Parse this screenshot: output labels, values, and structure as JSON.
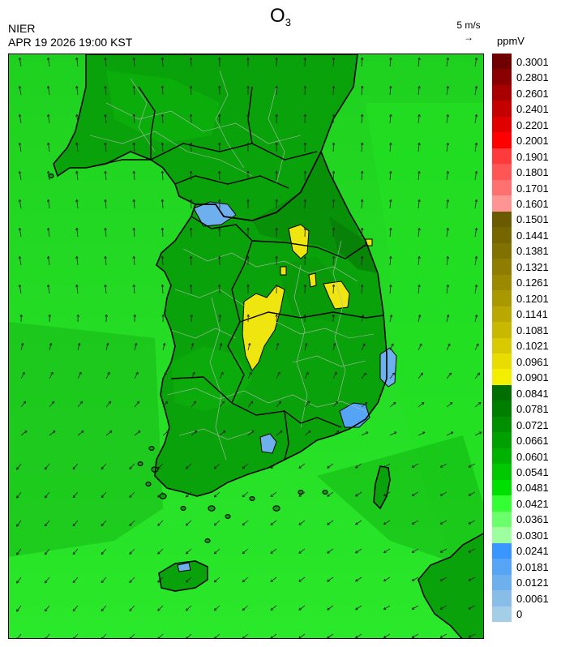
{
  "header": {
    "title_main": "O",
    "title_sub": "3",
    "agency": "NIER",
    "datetime": "APR 19 2026 19:00 KST"
  },
  "reference_vector": {
    "label": "5 m/s",
    "arrow": "→"
  },
  "legend": {
    "unit": "ppmV",
    "bins": [
      {
        "label": "0.3001",
        "color": "#6e0000"
      },
      {
        "label": "0.2801",
        "color": "#8a0000"
      },
      {
        "label": "0.2601",
        "color": "#a80000"
      },
      {
        "label": "0.2401",
        "color": "#c40000"
      },
      {
        "label": "0.2201",
        "color": "#e00000"
      },
      {
        "label": "0.2001",
        "color": "#ff0000"
      },
      {
        "label": "0.1901",
        "color": "#ff3a3a"
      },
      {
        "label": "0.1801",
        "color": "#ff5555"
      },
      {
        "label": "0.1701",
        "color": "#ff7070"
      },
      {
        "label": "0.1601",
        "color": "#ff9494"
      },
      {
        "label": "0.1501",
        "color": "#6a5a00"
      },
      {
        "label": "0.1441",
        "color": "#756600"
      },
      {
        "label": "0.1381",
        "color": "#817100"
      },
      {
        "label": "0.1321",
        "color": "#8e7d00"
      },
      {
        "label": "0.1261",
        "color": "#9b8a00"
      },
      {
        "label": "0.1201",
        "color": "#aa9800"
      },
      {
        "label": "0.1141",
        "color": "#b9a800"
      },
      {
        "label": "0.1081",
        "color": "#c9b800"
      },
      {
        "label": "0.1021",
        "color": "#d9c900"
      },
      {
        "label": "0.0961",
        "color": "#e8dc00"
      },
      {
        "label": "0.0901",
        "color": "#f4ee00"
      },
      {
        "label": "0.0841",
        "color": "#006e00"
      },
      {
        "label": "0.0781",
        "color": "#007e00"
      },
      {
        "label": "0.0721",
        "color": "#008f00"
      },
      {
        "label": "0.0661",
        "color": "#00a000"
      },
      {
        "label": "0.0601",
        "color": "#00b200"
      },
      {
        "label": "0.0541",
        "color": "#00c800"
      },
      {
        "label": "0.0481",
        "color": "#00e000"
      },
      {
        "label": "0.0421",
        "color": "#33ff33"
      },
      {
        "label": "0.0361",
        "color": "#6cff6c"
      },
      {
        "label": "0.0301",
        "color": "#9dff9d"
      },
      {
        "label": "0.0241",
        "color": "#3a96ff"
      },
      {
        "label": "0.0181",
        "color": "#55a4f5"
      },
      {
        "label": "0.0121",
        "color": "#6eb0ee"
      },
      {
        "label": "0.0061",
        "color": "#88bde8"
      },
      {
        "label": "0",
        "color": "#a4cde8"
      }
    ]
  },
  "map_colors": {
    "sea_base": "#1fd11f",
    "sea_light": "#2ae82a",
    "land_base": "#0aa20a",
    "land_dark": "#088a08",
    "coast": "#000000",
    "admin": "#b8b8b8",
    "arrow": "#222222"
  }
}
